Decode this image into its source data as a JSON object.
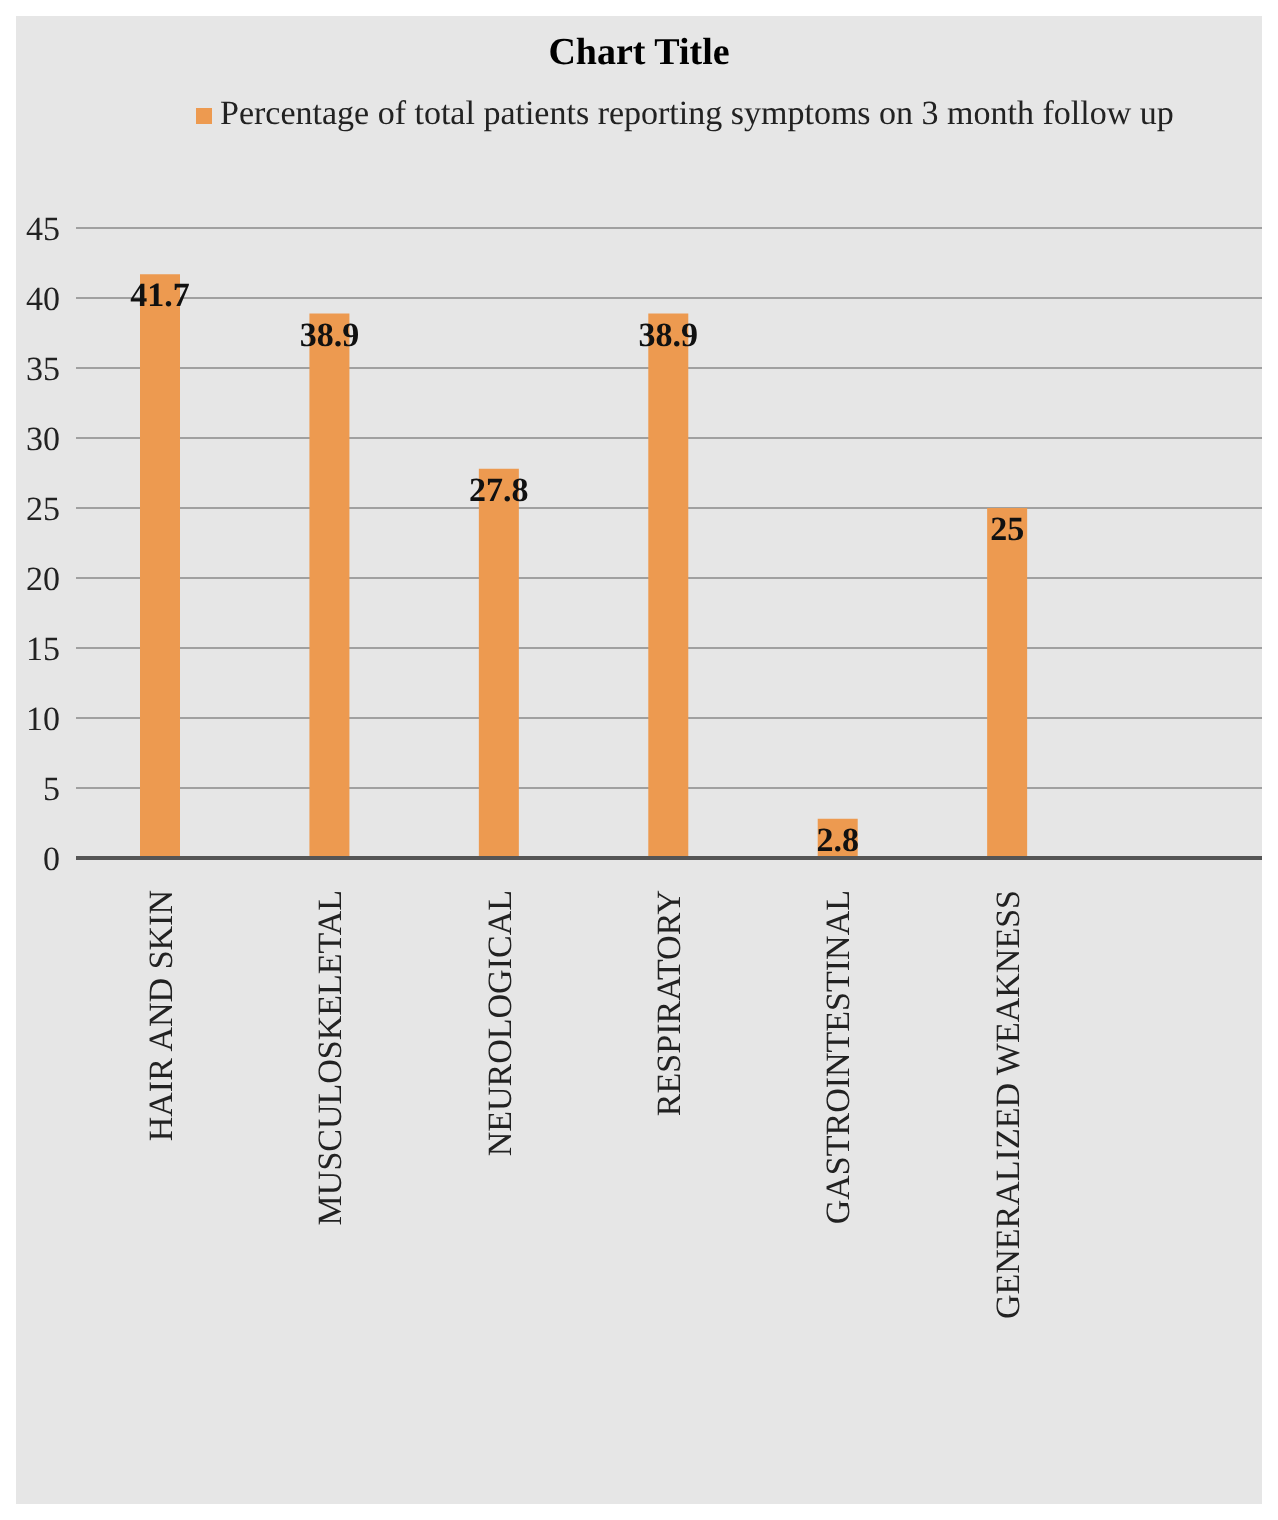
{
  "chart_data": {
    "type": "bar",
    "title": "Chart Title",
    "categories": [
      "HAIR AND SKIN",
      "MUSCULOSKELETAL",
      "NEUROLOGICAL",
      "RESPIRATORY",
      "GASTROINTESTINAL",
      "GENERALIZED WEAKNESS",
      null
    ],
    "series": [
      {
        "name": "Percentage of total patients reporting symptoms on 3 month follow up",
        "color": "#ed9a50",
        "values": [
          41.7,
          38.9,
          27.8,
          38.9,
          2.8,
          25,
          null
        ]
      }
    ],
    "ylim": [
      0,
      45
    ],
    "yticks": [
      0,
      5,
      10,
      15,
      20,
      25,
      30,
      35,
      40,
      45
    ],
    "grid": "y",
    "legend": "top",
    "data_labels": true
  }
}
